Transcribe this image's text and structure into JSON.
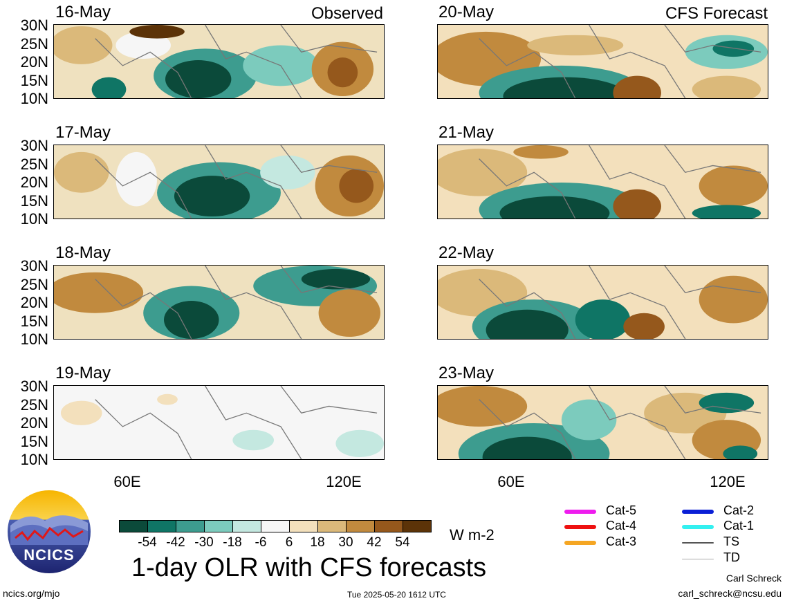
{
  "panels": {
    "observed_label": "Observed",
    "forecast_label": "CFS Forecast",
    "left": [
      {
        "date": "16-May"
      },
      {
        "date": "17-May"
      },
      {
        "date": "18-May"
      },
      {
        "date": "19-May"
      }
    ],
    "right": [
      {
        "date": "20-May"
      },
      {
        "date": "21-May"
      },
      {
        "date": "22-May"
      },
      {
        "date": "23-May"
      }
    ]
  },
  "axes": {
    "lat_labels": [
      "30N",
      "25N",
      "20N",
      "15N",
      "10N"
    ],
    "lon_labels": [
      "60E",
      "120E"
    ]
  },
  "colorbar": {
    "unit": "W m-2",
    "labels": [
      "-54",
      "-42",
      "-30",
      "-18",
      "-6",
      "6",
      "18",
      "30",
      "42",
      "54"
    ],
    "colors": [
      "#0b4a3a",
      "#0f7565",
      "#3d9c8f",
      "#7ccbbd",
      "#c4e8e0",
      "#f6f6f6",
      "#f3e0bc",
      "#dbb97a",
      "#c18a3e",
      "#95581c",
      "#5c3308"
    ]
  },
  "legend": {
    "items": [
      {
        "label": "Cat-5",
        "color": "#ee1cee"
      },
      {
        "label": "Cat-4",
        "color": "#ee1111"
      },
      {
        "label": "Cat-3",
        "color": "#f5a623"
      },
      {
        "label": "Cat-2",
        "color": "#0a1fd6"
      },
      {
        "label": "Cat-1",
        "color": "#33f0f0"
      },
      {
        "label": "TS",
        "color": "#555555"
      },
      {
        "label": "TD",
        "color": "#aaaaaa"
      }
    ]
  },
  "title": "1-day OLR with CFS forecasts",
  "logo_text": "NCICS",
  "footer": {
    "url": "ncics.org/mjo",
    "timestamp": "Tue 2025-05-20 1612 UTC",
    "author": "Carl Schreck",
    "email": "carl_schreck@ncsu.edu"
  }
}
